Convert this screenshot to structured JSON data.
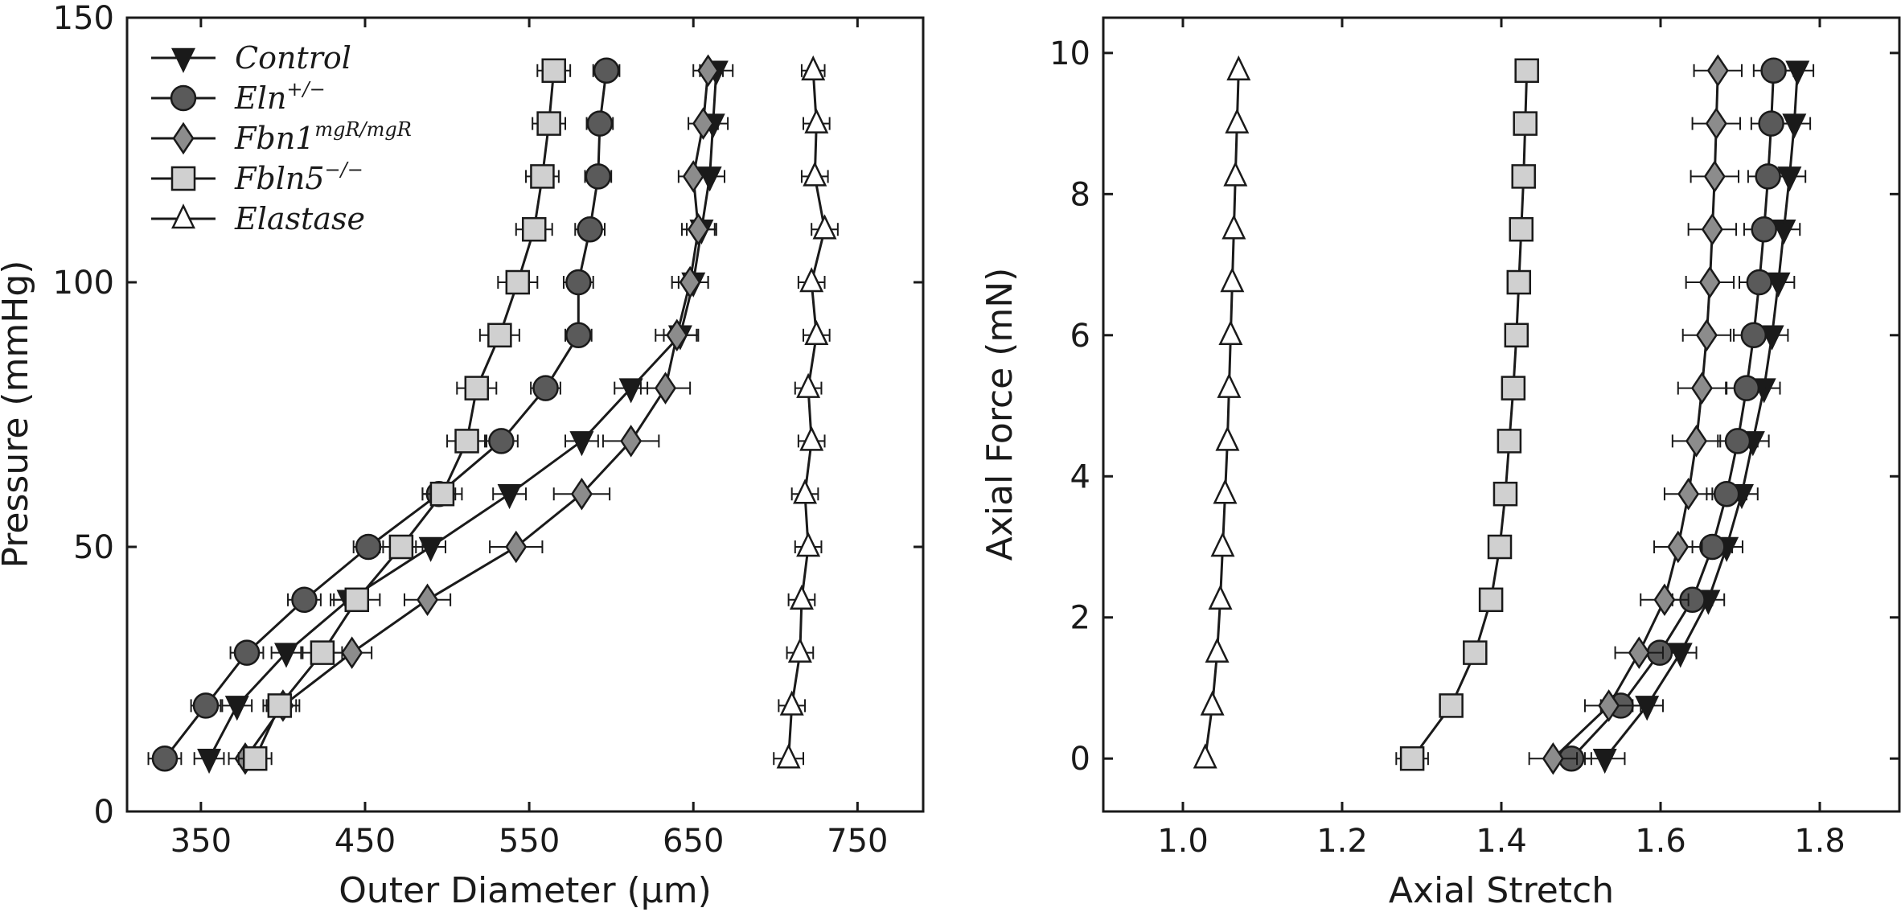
{
  "chart_data": [
    {
      "type": "line",
      "xlabel": "Outer Diameter (μm)",
      "ylabel": "Pressure (mmHg)",
      "xlim": [
        305,
        790
      ],
      "ylim": [
        0,
        150
      ],
      "xticks": [
        350,
        450,
        550,
        650,
        750
      ],
      "yticks": [
        0,
        50,
        100,
        150
      ],
      "grid": false,
      "legend_placement": "top-left",
      "y": [
        10,
        20,
        30,
        40,
        50,
        60,
        70,
        80,
        90,
        100,
        110,
        120,
        130,
        140
      ],
      "series": [
        {
          "name": "Control",
          "name_base": "Control",
          "name_sup": "",
          "marker": "triangle-down",
          "fill": "#1a1a1a",
          "x": [
            355,
            372,
            402,
            440,
            490,
            538,
            582,
            612,
            642,
            650,
            655,
            660,
            662,
            664
          ],
          "err": [
            9,
            9,
            9,
            11,
            9,
            10,
            10,
            10,
            10,
            9,
            9,
            9,
            9,
            10
          ]
        },
        {
          "name": "Eln+/−",
          "name_base": "Eln",
          "name_sup": "+/−",
          "marker": "circle",
          "fill": "#5a5a5a",
          "x": [
            328,
            353,
            378,
            413,
            452,
            495,
            533,
            560,
            580,
            580,
            587,
            592,
            593,
            597
          ],
          "err": [
            10,
            9,
            10,
            10,
            9,
            10,
            10,
            9,
            8,
            9,
            9,
            8,
            8,
            8
          ]
        },
        {
          "name": "Fbn1mgR/mgR",
          "name_base": "Fbn1",
          "name_sup": "mgR/mgR",
          "marker": "diamond",
          "fill": "#8c8c8c",
          "x": [
            377,
            400,
            442,
            488,
            542,
            582,
            612,
            633,
            640,
            648,
            653,
            650,
            656,
            659
          ],
          "err": [
            10,
            10,
            12,
            14,
            16,
            17,
            17,
            15,
            13,
            11,
            10,
            9,
            9,
            9
          ]
        },
        {
          "name": "Fbln5−/−",
          "name_base": "Fbln5",
          "name_sup": "−/−",
          "marker": "square",
          "fill": "#d0d0d0",
          "x": [
            383,
            398,
            424,
            445,
            472,
            497,
            512,
            518,
            532,
            543,
            553,
            558,
            562,
            565
          ],
          "err": [
            10,
            10,
            12,
            14,
            13,
            12,
            12,
            12,
            12,
            12,
            11,
            10,
            10,
            10
          ]
        },
        {
          "name": "Elastase",
          "name_base": "Elastase",
          "name_sup": "",
          "marker": "triangle-up",
          "fill": "#ffffff",
          "x": [
            708,
            710,
            715,
            716,
            720,
            718,
            722,
            720,
            725,
            722,
            730,
            724,
            725,
            723
          ],
          "err": [
            9,
            8,
            8,
            8,
            8,
            8,
            8,
            8,
            8,
            8,
            8,
            8,
            8,
            7
          ]
        }
      ]
    },
    {
      "type": "line",
      "xlabel": "Axial Stretch",
      "ylabel": "Axial Force (mN)",
      "xlim": [
        0.9,
        1.9
      ],
      "ylim": [
        -0.75,
        10.5
      ],
      "xticks": [
        1.0,
        1.2,
        1.4,
        1.6,
        1.8
      ],
      "yticks": [
        0,
        2,
        4,
        6,
        8,
        10
      ],
      "grid": false,
      "series": [
        {
          "name": "Control",
          "marker": "triangle-down",
          "fill": "#1a1a1a",
          "x": [
            1.53,
            1.583,
            1.625,
            1.66,
            1.683,
            1.702,
            1.716,
            1.73,
            1.74,
            1.748,
            1.755,
            1.762,
            1.768,
            1.772
          ],
          "y": [
            0.0,
            0.75,
            1.5,
            2.25,
            3.0,
            3.75,
            4.5,
            5.25,
            6.0,
            6.75,
            7.5,
            8.25,
            9.0,
            9.75
          ],
          "err": [
            0.025,
            0.02,
            0.02,
            0.02,
            0.02,
            0.02,
            0.02,
            0.02,
            0.02,
            0.02,
            0.02,
            0.02,
            0.02,
            0.02
          ]
        },
        {
          "name": "Eln+/−",
          "marker": "circle",
          "fill": "#5a5a5a",
          "x": [
            1.488,
            1.55,
            1.599,
            1.64,
            1.665,
            1.683,
            1.697,
            1.708,
            1.717,
            1.724,
            1.73,
            1.735,
            1.739,
            1.742
          ],
          "y": [
            0.0,
            0.75,
            1.5,
            2.25,
            3.0,
            3.75,
            4.5,
            5.25,
            6.0,
            6.75,
            7.5,
            8.25,
            9.0,
            9.75
          ],
          "err": [
            0.025,
            0.025,
            0.025,
            0.025,
            0.025,
            0.025,
            0.025,
            0.025,
            0.025,
            0.025,
            0.025,
            0.025,
            0.025,
            0.025
          ]
        },
        {
          "name": "Fbn1mgR/mgR",
          "marker": "diamond",
          "fill": "#8c8c8c",
          "x": [
            1.465,
            1.535,
            1.573,
            1.605,
            1.622,
            1.635,
            1.645,
            1.652,
            1.658,
            1.662,
            1.665,
            1.668,
            1.67,
            1.672
          ],
          "y": [
            0.0,
            0.75,
            1.5,
            2.25,
            3.0,
            3.75,
            4.5,
            5.25,
            6.0,
            6.75,
            7.5,
            8.25,
            9.0,
            9.75
          ],
          "err": [
            0.03,
            0.03,
            0.03,
            0.03,
            0.03,
            0.03,
            0.03,
            0.03,
            0.03,
            0.03,
            0.03,
            0.03,
            0.03,
            0.03
          ]
        },
        {
          "name": "Fbln5−/−",
          "marker": "square",
          "fill": "#d0d0d0",
          "x": [
            1.288,
            1.337,
            1.367,
            1.387,
            1.398,
            1.405,
            1.41,
            1.415,
            1.419,
            1.422,
            1.425,
            1.428,
            1.43,
            1.432
          ],
          "y": [
            0.0,
            0.75,
            1.5,
            2.25,
            3.0,
            3.75,
            4.5,
            5.25,
            6.0,
            6.75,
            7.5,
            8.25,
            9.0,
            9.75
          ],
          "err": [
            0.02,
            0.01,
            0.008,
            0.008,
            0.007,
            0.007,
            0.007,
            0.007,
            0.007,
            0.007,
            0.007,
            0.007,
            0.007,
            0.007
          ]
        },
        {
          "name": "Elastase",
          "marker": "triangle-up",
          "fill": "#ffffff",
          "x": [
            1.028,
            1.037,
            1.043,
            1.047,
            1.05,
            1.053,
            1.056,
            1.058,
            1.06,
            1.062,
            1.064,
            1.066,
            1.068,
            1.07
          ],
          "y": [
            0.0,
            0.75,
            1.5,
            2.25,
            3.0,
            3.75,
            4.5,
            5.25,
            6.0,
            6.75,
            7.5,
            8.25,
            9.0,
            9.75
          ],
          "err": [
            0,
            0,
            0,
            0,
            0,
            0,
            0,
            0,
            0,
            0,
            0,
            0,
            0,
            0
          ]
        }
      ]
    }
  ]
}
